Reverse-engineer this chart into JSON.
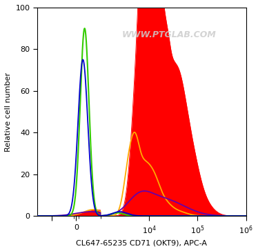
{
  "xlabel": "CL647-65235 CD71 (OKT9), APC-A",
  "ylabel": "Relative cell number",
  "watermark": "WWW.PTGLAB.COM",
  "ylim": [
    0,
    100
  ],
  "background_color": "#ffffff",
  "colors": {
    "green": "#33cc00",
    "blue": "#0000cc",
    "orange": "#ffaa00",
    "purple": "#6600aa",
    "red_fill": "#ff0000"
  },
  "yticks": [
    0,
    20,
    40,
    60,
    80,
    100
  ],
  "linthresh": 1000,
  "linscale": 0.45
}
